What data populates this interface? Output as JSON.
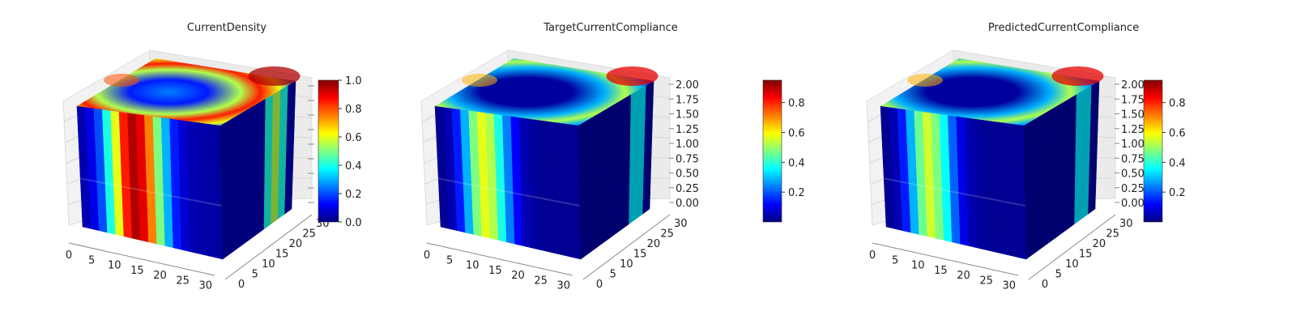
{
  "colormap": [
    "#00007f",
    "#0000ff",
    "#007fff",
    "#00ffff",
    "#7fff7f",
    "#ffff00",
    "#ff7f00",
    "#ff0000",
    "#7f0000"
  ],
  "chart_data": [
    {
      "type": "3d-voxel",
      "title": "CurrentDensity",
      "x_ticks": [
        "0",
        "5",
        "10",
        "15",
        "20",
        "25",
        "30"
      ],
      "y_ticks": [
        "0",
        "5",
        "10",
        "15",
        "20",
        "25",
        "30"
      ],
      "z_ticks": [],
      "colorbar_ticks": [
        "0.0",
        "0.2",
        "0.4",
        "0.6",
        "0.8",
        "1.0"
      ],
      "colorbar_range": [
        0.0,
        1.0
      ],
      "front_face_profile": [
        0.05,
        0.1,
        0.2,
        0.4,
        0.6,
        0.85,
        0.95,
        0.9,
        0.75,
        0.5,
        0.3,
        0.15,
        0.08,
        0.05,
        0.04,
        0.04,
        0.03
      ]
    },
    {
      "type": "3d-voxel",
      "title": "TargetCurrentCompliance",
      "x_ticks": [
        "0",
        "5",
        "10",
        "15",
        "20",
        "25",
        "30"
      ],
      "y_ticks": [
        "0",
        "5",
        "10",
        "15",
        "20",
        "25",
        "30"
      ],
      "z_ticks": [
        "0.00",
        "0.25",
        "0.50",
        "0.75",
        "1.00",
        "1.25",
        "1.50",
        "1.75",
        "2.00"
      ],
      "colorbar_ticks": [
        "0.2",
        "0.4",
        "0.6",
        "0.8"
      ],
      "colorbar_range": [
        0.0,
        0.95
      ],
      "front_face_profile": [
        0.02,
        0.05,
        0.15,
        0.3,
        0.5,
        0.6,
        0.55,
        0.4,
        0.25,
        0.12,
        0.05,
        0.03,
        0.02,
        0.02,
        0.02,
        0.02,
        0.02
      ]
    },
    {
      "type": "3d-voxel",
      "title": "PredictedCurrentCompliance",
      "x_ticks": [
        "0",
        "5",
        "10",
        "15",
        "20",
        "25",
        "30"
      ],
      "y_ticks": [
        "0",
        "5",
        "10",
        "15",
        "20",
        "25",
        "30"
      ],
      "z_ticks": [
        "0.00",
        "0.25",
        "0.50",
        "0.75",
        "1.00",
        "1.25",
        "1.50",
        "1.75",
        "2.00"
      ],
      "colorbar_ticks": [
        "0.2",
        "0.4",
        "0.6",
        "0.8"
      ],
      "colorbar_range": [
        0.0,
        0.95
      ],
      "front_face_profile": [
        0.02,
        0.05,
        0.15,
        0.3,
        0.48,
        0.58,
        0.5,
        0.38,
        0.22,
        0.1,
        0.05,
        0.03,
        0.02,
        0.02,
        0.02,
        0.02,
        0.02
      ]
    }
  ]
}
